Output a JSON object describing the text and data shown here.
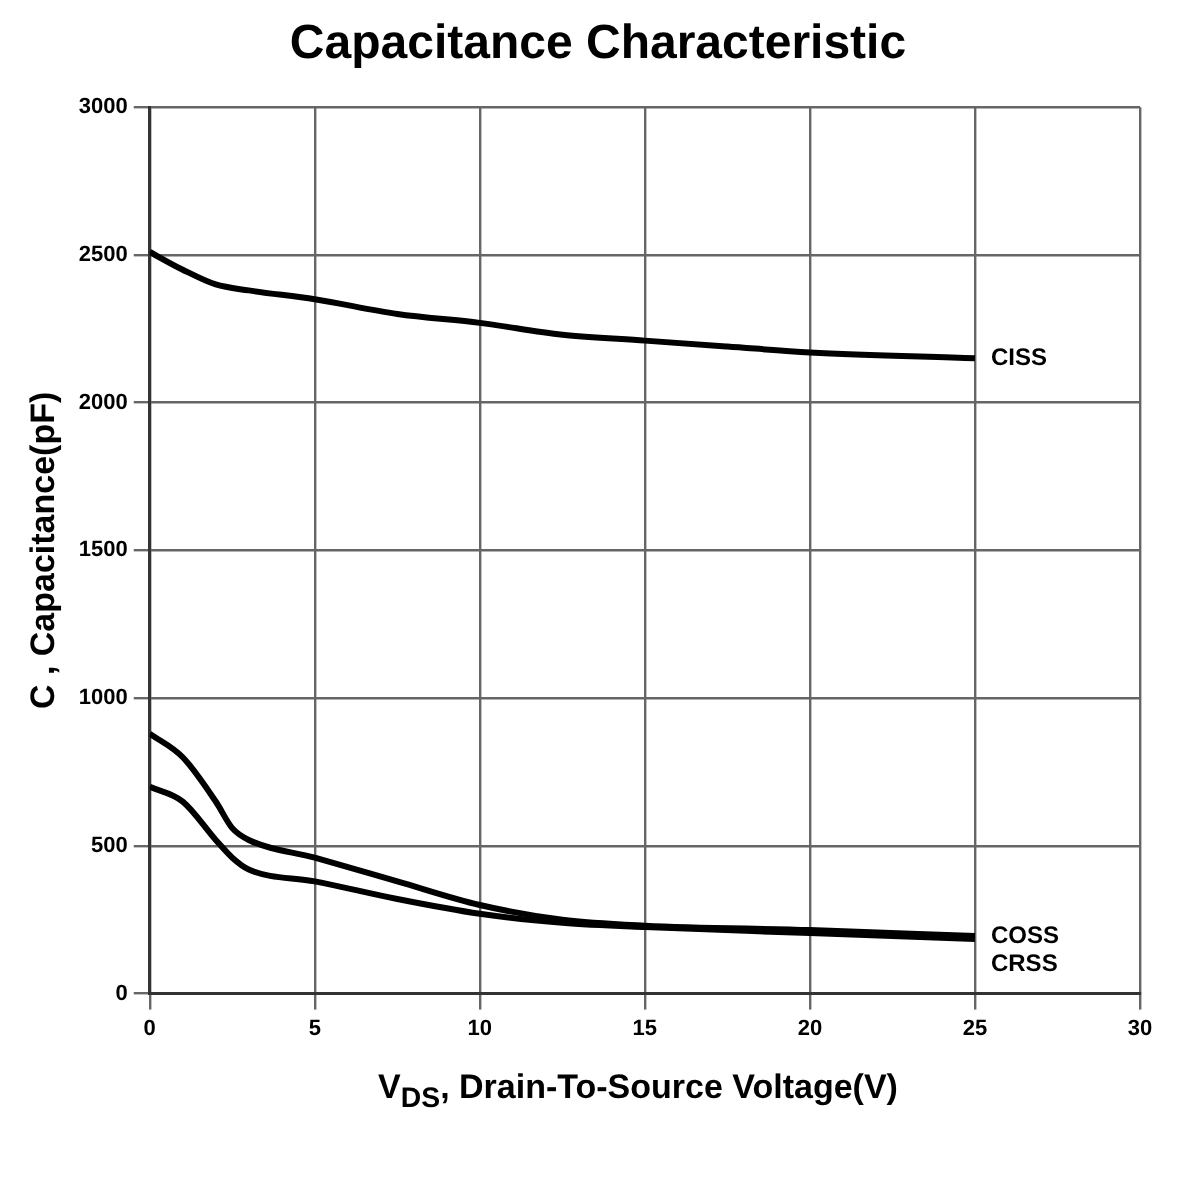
{
  "chart_data": {
    "type": "line",
    "title": "Capacitance Characteristic",
    "xlabel": "V$_{DS}$, Drain-To-Source Voltage(V)",
    "ylabel": "C , Capacitance(pF)",
    "xlim": [
      0,
      30
    ],
    "xticks": [
      0,
      5,
      10,
      15,
      20,
      25,
      30
    ],
    "ylim": [
      0,
      3000
    ],
    "yticks": [
      0,
      500,
      1000,
      1500,
      2000,
      2500,
      3000
    ],
    "grid": true,
    "legend": false,
    "marker": "none",
    "line_style": "solid",
    "series": [
      {
        "name": "CISS",
        "color": "#000000",
        "x": [
          0,
          1,
          2,
          3,
          5,
          7.5,
          10,
          12.5,
          15,
          17.5,
          20,
          25
        ],
        "values": [
          2510,
          2450,
          2400,
          2380,
          2350,
          2300,
          2270,
          2230,
          2210,
          2190,
          2170,
          2150
        ]
      },
      {
        "name": "COSS",
        "color": "#000000",
        "x": [
          0,
          1,
          2,
          2.5,
          3,
          5,
          7.5,
          10,
          12.5,
          15,
          20,
          25
        ],
        "values": [
          880,
          800,
          650,
          560,
          520,
          460,
          380,
          300,
          250,
          230,
          215,
          195
        ]
      },
      {
        "name": "CRSS",
        "color": "#000000",
        "x": [
          0,
          1,
          2,
          2.5,
          3,
          5,
          7.5,
          10,
          12.5,
          15,
          20,
          25
        ],
        "values": [
          700,
          650,
          520,
          460,
          420,
          380,
          320,
          270,
          240,
          225,
          205,
          185
        ]
      }
    ]
  }
}
